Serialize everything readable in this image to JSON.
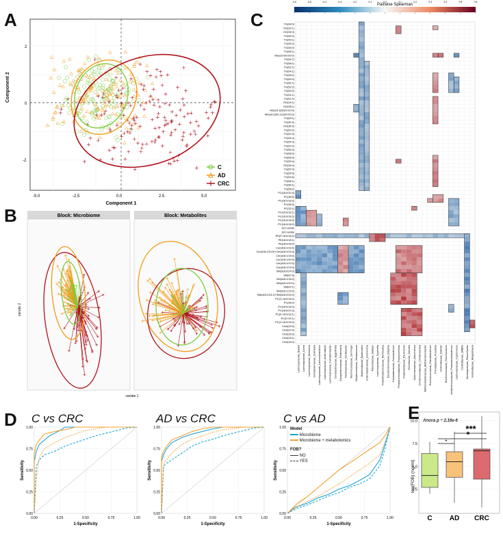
{
  "figure": {
    "panel_letters": [
      "A",
      "B",
      "C",
      "D",
      "E"
    ],
    "colors": {
      "C": "#7ccb3f",
      "AD": "#f29a16",
      "CRC": "#b0101a",
      "microbiome": "#1aa3d9",
      "microbiome_metab": "#f2a032",
      "box_C": "#cce98a",
      "box_AD": "#f8c27a",
      "box_CRC": "#dd6a6e"
    }
  },
  "panelA": {
    "xlabel": "Component 1",
    "ylabel": "Component 2",
    "xticks": [
      "-5.0",
      "-2.5",
      "0.0",
      "2.5",
      "5.0"
    ],
    "yticks": [
      "2",
      "0",
      "-2"
    ],
    "legend": [
      "C",
      "AD",
      "CRC"
    ]
  },
  "panelB": {
    "titles": [
      "Block: Microbiome",
      "Block: Metabolites"
    ],
    "xlabel": "variate 1",
    "ylabel": "variate 2"
  },
  "panelC": {
    "colorbar_title": "Pairwise Spearman",
    "colorbar_ticks": [
      "-0.6",
      "-0.5",
      "-0.4",
      "-0.3",
      "-0.2",
      "-0.1",
      "0.0",
      "0.1",
      "0.2",
      "0.3",
      "0.4",
      "0.5",
      "0.6"
    ],
    "rows": [
      "TG(48:0)",
      "DG(32:1)",
      "DG(34:0)",
      "TG(49:0)",
      "TG(49:1)",
      "TG(49:2)",
      "TG(46:0)",
      "TG(48:1)",
      "MG(16:0/0:0/0:0)",
      "TG(54:7)",
      "TG(56:1)",
      "TG(52:1)",
      "TG(54:1)",
      "TG(48:2)",
      "TG(50:3)",
      "TG(50:1)",
      "TG(52:2)",
      "TG(53:2)",
      "TG(51:1)",
      "TG(51:2)",
      "DG(34:1)",
      "DG(36:1)",
      "MG(18:1(9Z)/0:0/0:0)",
      "MG(18:2(9Z,12Z)/0:0/0:0)",
      "TG(50:1)",
      "TG(50:2)",
      "DG(36:2)",
      "TG(50:2)",
      "TG(52:3)",
      "TG(54:4)",
      "TG(54:3)",
      "TG(52:2)",
      "TG(56:3)",
      "TG(58:3)",
      "TG(56:4)",
      "TG(53:4)",
      "DG(36:4)",
      "TG(52:4)",
      "TG(54:5)",
      "TG(54:6)",
      "TG(56:1)",
      "TG(56:1)",
      "TG(58:2)",
      "PC(16:0/20:4)",
      "PC(36:5)",
      "PC(18:2/18:2)",
      "PC(36:3)",
      "PC(32:1)",
      "PC(16:0/18:1)",
      "PC(16:0/18:2)",
      "PC(16:0/18:3)",
      "PC(18:0/18:2)",
      "16:0 amide",
      "18:0 amide",
      "PE(P-16:0/18:2)",
      "PE(18:0/18:1)",
      "PE(18:0/18:2)",
      "Cer(d18:1/16:0)",
      "Cer(d18:1/24:0)+Cer(d18:2/24:0)",
      "Cer(d18:1/18:0)",
      "Cer(d18:1/20:0)",
      "Cer(d18:1/22:0)",
      "Cer(d18:1/24:0)",
      "SM(d18:0/24:0)",
      "SM(42:3)",
      "SM(d18:1/18:0)",
      "SM(d18:1/20:0)",
      "SM(42:1)",
      "SM(d18:1/16:0)",
      "SM(d18:1/24:1)+SM(d18:2/24:0)",
      "PC(O-16:0/18:2)",
      "PC(36:0)",
      "PC(18:0/18:0)",
      "PC(18:0/20:4)",
      "PC(P-18:0/18:1)",
      "PC(O-34:1)",
      "PC(O-16:0/18:2)",
      "Chol(22:6)",
      "Chol(20:4)",
      "Chol(16:0)",
      "Chol(18:1)",
      "Chol(18:2)"
    ],
    "columns": [
      "Lachnospiraceae_Blautia",
      "Lachnospiraceae_Dorea",
      "Lachnospiraceae_Roseburia",
      "Coriobacteriaceae_Collinsella",
      "Lachnospiraceae_Lachnoclostridium",
      "Lachnospiraceae_Anaerostipes",
      "Lachnospiraceae_Fusicatenibacter",
      "Coriobacteriaceae_Eggerthella",
      "Erysipelotrichaceae_Holdemania",
      "Oscillospiraceae_Oscillibacter",
      "Ruminococcaceae_Gemmiger",
      "Streptococcaceae_Streptococcus",
      "Bacteroidaceae_Bacteroides",
      "Enterobacteriaceae_Escherichia",
      "Rikenellaceae_Alistipes",
      "Lachnospiraceae_Tyzzerella",
      "Peptostreptococcaceae_Romboutsia",
      "Desulfovibrionaceae_Bilophila",
      "Fusobacteriaceae_Fusobacterium",
      "Porphyromonadaceae_Porphyromonas",
      "Peptoniphilaceae_Parvimonas",
      "Gemellaceae_Gemella",
      "Akkermansiaceae_Akkermansia",
      "Christensenellaceae_Christensenella",
      "Methanobacteriaceae_Methanobrevibacter",
      "Ruminococcaceae_Faecalibacterium",
      "Prevotellaceae_Prevotella",
      "Veillonellaceae_Dialister",
      "Ruminococcaceae_Ruminococcus",
      "Acidaminococcaceae_Phascolarctobacterium",
      "Lachnospiraceae_Coprococcus",
      "Clostridiaceae_SMB53",
      "Oscillospiraceae_Flavonifractor",
      "Veillonellaceae_Megasphaera"
    ]
  },
  "panelD": {
    "titles": [
      "C vs CRC",
      "AD vs CRC",
      "C vs AD"
    ],
    "xlabel": "1-Specificity",
    "ylabel": "Sensitivity",
    "ticks": [
      "0.00",
      "0.25",
      "0.50",
      "0.75",
      "1.00"
    ],
    "legend_model_title": "Model",
    "legend_models": [
      "Microbiome",
      "Microbiome + metabolomics"
    ],
    "legend_fob_title": "FOB?",
    "legend_fob": [
      "NO",
      "YES"
    ]
  },
  "panelE": {
    "anova": "Anova p = 2.16e-6",
    "ylabel": "log(FOB) (ng/ml)",
    "yticks": [
      "10.0",
      "7.5",
      "5.0",
      "2.5"
    ],
    "categories": [
      "C",
      "AD",
      "CRC"
    ],
    "sig": [
      "***",
      "*",
      "•"
    ],
    "boxes": [
      {
        "group": "C",
        "min": 2.0,
        "q1": 2.7,
        "median": 4.0,
        "q3": 6.4,
        "max": 7.7
      },
      {
        "group": "AD",
        "min": 1.0,
        "q1": 3.8,
        "median": 5.5,
        "q3": 6.6,
        "max": 8.8
      },
      {
        "group": "CRC",
        "min": 0.5,
        "q1": 3.6,
        "median": 6.7,
        "q3": 6.9,
        "max": 10.5
      }
    ]
  },
  "chart_data": [
    {
      "type": "line",
      "title": "C vs CRC",
      "xlabel": "1-Specificity",
      "ylabel": "Sensitivity",
      "xlim": [
        0,
        1
      ],
      "ylim": [
        0,
        1
      ],
      "series": [
        {
          "name": "Microbiome, FOB NO",
          "x": [
            0,
            0,
            0.02,
            0.05,
            0.1,
            0.15,
            0.2,
            0.25,
            0.3,
            0.4,
            0.5,
            0.6,
            0.7,
            0.8,
            1
          ],
          "y": [
            0,
            0.6,
            0.72,
            0.8,
            0.85,
            0.9,
            0.93,
            0.96,
            1,
            1,
            1,
            1,
            1,
            1,
            1
          ]
        },
        {
          "name": "Microbiome + metabolomics, FOB NO",
          "x": [
            0,
            0,
            0.02,
            0.05,
            0.1,
            0.2,
            0.3,
            0.4,
            0.5,
            1
          ],
          "y": [
            0,
            0.7,
            0.8,
            0.85,
            0.92,
            0.95,
            0.97,
            1,
            1,
            1
          ]
        },
        {
          "name": "Microbiome, FOB YES",
          "x": [
            0,
            0.02,
            0.05,
            0.1,
            0.2,
            0.3,
            0.4,
            0.5,
            0.6,
            0.7,
            0.8,
            0.9,
            1
          ],
          "y": [
            0,
            0.55,
            0.62,
            0.68,
            0.72,
            0.78,
            0.82,
            0.86,
            0.9,
            0.93,
            0.96,
            0.99,
            1
          ]
        },
        {
          "name": "Microbiome + metabolomics, FOB YES",
          "x": [
            0,
            0.02,
            0.05,
            0.1,
            0.2,
            0.3,
            0.4,
            0.5,
            0.6,
            0.7,
            0.8,
            1
          ],
          "y": [
            0,
            0.4,
            0.65,
            0.75,
            0.82,
            0.88,
            0.92,
            0.96,
            0.98,
            1,
            1,
            1
          ]
        }
      ]
    },
    {
      "type": "line",
      "title": "AD vs CRC",
      "xlabel": "1-Specificity",
      "ylabel": "Sensitivity",
      "xlim": [
        0,
        1
      ],
      "ylim": [
        0,
        1
      ],
      "series": [
        {
          "name": "Microbiome, FOB NO",
          "x": [
            0,
            0,
            0.02,
            0.05,
            0.1,
            0.2,
            0.3,
            0.4,
            0.5,
            0.6,
            0.8,
            1
          ],
          "y": [
            0,
            0.6,
            0.68,
            0.75,
            0.82,
            0.88,
            0.92,
            0.95,
            0.98,
            1,
            1,
            1
          ]
        },
        {
          "name": "Microbiome + metabolomics, FOB NO",
          "x": [
            0,
            0,
            0.02,
            0.05,
            0.1,
            0.2,
            0.3,
            0.4,
            0.5,
            1
          ],
          "y": [
            0,
            0.65,
            0.72,
            0.78,
            0.85,
            0.9,
            0.95,
            0.98,
            1,
            1
          ]
        },
        {
          "name": "Microbiome, FOB YES",
          "x": [
            0,
            0.02,
            0.05,
            0.1,
            0.2,
            0.3,
            0.4,
            0.5,
            0.6,
            0.7,
            0.8,
            0.9,
            1
          ],
          "y": [
            0,
            0.55,
            0.58,
            0.62,
            0.7,
            0.78,
            0.83,
            0.86,
            0.9,
            0.93,
            0.96,
            0.99,
            1
          ]
        },
        {
          "name": "Microbiome + metabolomics, FOB YES",
          "x": [
            0,
            0.02,
            0.05,
            0.1,
            0.2,
            0.3,
            0.4,
            0.5,
            0.6,
            0.8,
            1
          ],
          "y": [
            0,
            0.58,
            0.62,
            0.7,
            0.8,
            0.86,
            0.9,
            0.94,
            0.97,
            1,
            1
          ]
        }
      ]
    },
    {
      "type": "line",
      "title": "C vs AD",
      "xlabel": "1-Specificity",
      "ylabel": "Sensitivity",
      "xlim": [
        0,
        1
      ],
      "ylim": [
        0,
        1
      ],
      "series": [
        {
          "name": "Microbiome, FOB NO",
          "x": [
            0,
            0.05,
            0.1,
            0.2,
            0.3,
            0.4,
            0.5,
            0.6,
            0.7,
            0.8,
            0.9,
            0.95,
            1
          ],
          "y": [
            0,
            0.05,
            0.08,
            0.12,
            0.18,
            0.22,
            0.28,
            0.32,
            0.38,
            0.45,
            0.62,
            0.8,
            1
          ]
        },
        {
          "name": "Microbiome + metabolomics, FOB NO",
          "x": [
            0,
            0.05,
            0.1,
            0.2,
            0.3,
            0.4,
            0.5,
            0.6,
            0.7,
            0.8,
            0.9,
            0.95,
            1
          ],
          "y": [
            0,
            0.06,
            0.12,
            0.2,
            0.3,
            0.4,
            0.5,
            0.58,
            0.66,
            0.74,
            0.82,
            0.9,
            1
          ]
        },
        {
          "name": "Microbiome, FOB YES",
          "x": [
            0,
            0.05,
            0.1,
            0.2,
            0.3,
            0.4,
            0.5,
            0.6,
            0.7,
            0.8,
            0.9,
            0.95,
            1
          ],
          "y": [
            0,
            0.03,
            0.06,
            0.1,
            0.15,
            0.2,
            0.24,
            0.3,
            0.34,
            0.4,
            0.55,
            0.75,
            1
          ]
        },
        {
          "name": "Microbiome + metabolomics, FOB YES",
          "x": [
            0,
            0.05,
            0.1,
            0.2,
            0.3,
            0.4,
            0.5,
            0.6,
            0.7,
            0.8,
            0.9,
            0.95,
            1
          ],
          "y": [
            0,
            0.04,
            0.08,
            0.14,
            0.2,
            0.27,
            0.34,
            0.42,
            0.5,
            0.58,
            0.68,
            0.82,
            1
          ]
        }
      ]
    },
    {
      "type": "bar",
      "title": "Anova p = 2.16e-6",
      "ylabel": "log(FOB) (ng/ml)",
      "categories": [
        "C",
        "AD",
        "CRC"
      ],
      "values": [
        4.0,
        5.5,
        6.7
      ],
      "ylim": [
        0,
        10.5
      ]
    }
  ]
}
